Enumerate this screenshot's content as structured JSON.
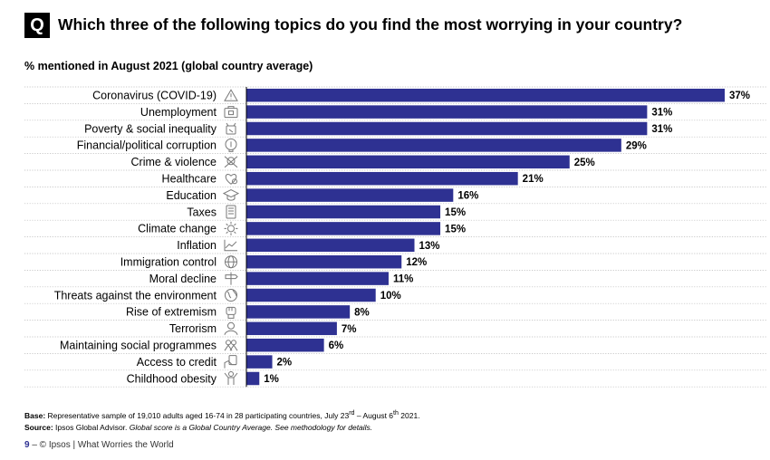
{
  "header": {
    "badge": "Q",
    "question": "Which three of the following topics do you find the most worrying in your country?",
    "subtitle": "% mentioned in August 2021 (global country average)"
  },
  "chart_data": {
    "type": "bar",
    "orientation": "horizontal",
    "bar_color": "#2e3192",
    "value_suffix": "%",
    "xlim": [
      0,
      37
    ],
    "categories": [
      {
        "label": "Coronavirus (COVID-19)",
        "value": 37,
        "icon": "warning-icon"
      },
      {
        "label": "Unemployment",
        "value": 31,
        "icon": "briefcase-icon"
      },
      {
        "label": "Poverty & social inequality",
        "value": 31,
        "icon": "poverty-icon"
      },
      {
        "label": "Financial/political corruption",
        "value": 29,
        "icon": "corruption-icon"
      },
      {
        "label": "Crime & violence",
        "value": 25,
        "icon": "crime-icon"
      },
      {
        "label": "Healthcare",
        "value": 21,
        "icon": "healthcare-icon"
      },
      {
        "label": "Education",
        "value": 16,
        "icon": "graduation-cap-icon"
      },
      {
        "label": "Taxes",
        "value": 15,
        "icon": "tax-document-icon"
      },
      {
        "label": "Climate change",
        "value": 15,
        "icon": "sun-icon"
      },
      {
        "label": "Inflation",
        "value": 13,
        "icon": "line-chart-icon"
      },
      {
        "label": "Immigration control",
        "value": 12,
        "icon": "globe-icon"
      },
      {
        "label": "Moral decline",
        "value": 11,
        "icon": "signpost-icon"
      },
      {
        "label": "Threats against the environment",
        "value": 10,
        "icon": "earth-icon"
      },
      {
        "label": "Rise of extremism",
        "value": 8,
        "icon": "fist-icon"
      },
      {
        "label": "Terrorism",
        "value": 7,
        "icon": "person-icon"
      },
      {
        "label": "Maintaining social programmes",
        "value": 6,
        "icon": "people-icon"
      },
      {
        "label": "Access to credit",
        "value": 2,
        "icon": "credit-hand-icon"
      },
      {
        "label": "Childhood obesity",
        "value": 1,
        "icon": "child-icon"
      }
    ]
  },
  "footer": {
    "base_label": "Base:",
    "base_text": "Representative sample of 19,010 adults aged 16-74 in 28 participating countries, July 23",
    "base_sup1": "rd",
    "base_mid": " – August 6",
    "base_sup2": "th",
    "base_end": " 2021.",
    "source_label": "Source:",
    "source_text": "Ipsos Global Advisor.",
    "source_italic": "Global score is a Global Country Average. See methodology for details.",
    "page_number": "9",
    "page_text": "– © Ipsos | What Worries the World"
  }
}
